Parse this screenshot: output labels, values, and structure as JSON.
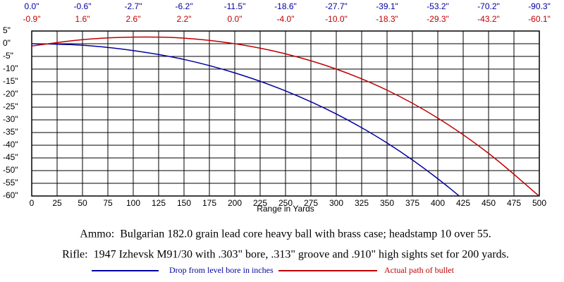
{
  "chart_data": {
    "type": "line",
    "x": [
      0,
      50,
      100,
      150,
      200,
      250,
      300,
      350,
      400,
      450,
      500
    ],
    "xlim": [
      0,
      500
    ],
    "ylim": [
      -60,
      5
    ],
    "xticks": [
      0,
      25,
      50,
      75,
      100,
      125,
      150,
      175,
      200,
      225,
      250,
      275,
      300,
      325,
      350,
      375,
      400,
      425,
      450,
      475,
      500
    ],
    "yticks": [
      {
        "value": 5,
        "label": "5\""
      },
      {
        "value": 0,
        "label": "0\""
      },
      {
        "value": -5,
        "label": "-5\""
      },
      {
        "value": -10,
        "label": "-10\""
      },
      {
        "value": -15,
        "label": "-15\""
      },
      {
        "value": -20,
        "label": "-20\""
      },
      {
        "value": -25,
        "label": "-25\""
      },
      {
        "value": -30,
        "label": "-30\""
      },
      {
        "value": -35,
        "label": "-35\""
      },
      {
        "value": -40,
        "label": "-40\""
      },
      {
        "value": -45,
        "label": "-45\""
      },
      {
        "value": -50,
        "label": "-50\""
      },
      {
        "value": -55,
        "label": "-55\""
      },
      {
        "value": -60,
        "label": "-60\""
      }
    ],
    "grid": true,
    "xlabel": "Range in Yards",
    "captions": [
      "Ammo:  Bulgarian 182.0 grain lead core heavy ball with brass case; headstamp 10 over 55.",
      "Rifle:  1947 Izhevsk M91/30 with .303\" bore, .313\" groove and .910\" high sights set for 200 yards."
    ],
    "series": [
      {
        "name": "Drop from level bore in inches",
        "color": "#0000a0",
        "values": [
          0.0,
          -0.6,
          -2.7,
          -6.2,
          -11.5,
          -18.6,
          -27.7,
          -39.1,
          -53.2,
          -70.2,
          -90.3
        ],
        "value_labels": [
          "0.0\"",
          "-0.6\"",
          "-2.7\"",
          "-6.2\"",
          "-11.5\"",
          "-18.6\"",
          "-27.7\"",
          "-39.1\"",
          "-53.2\"",
          "-70.2\"",
          "-90.3\""
        ]
      },
      {
        "name": "Actual path of bullet",
        "color": "#c00000",
        "values": [
          -0.9,
          1.6,
          2.6,
          2.2,
          0.0,
          -4.0,
          -10.0,
          -18.3,
          -29.3,
          -43.2,
          -60.1
        ],
        "value_labels": [
          "-0.9\"",
          "1.6\"",
          "2.6\"",
          "2.2\"",
          "0.0\"",
          "-4.0\"",
          "-10.0\"",
          "-18.3\"",
          "-29.3\"",
          "-43.2\"",
          "-60.1\""
        ]
      }
    ]
  }
}
